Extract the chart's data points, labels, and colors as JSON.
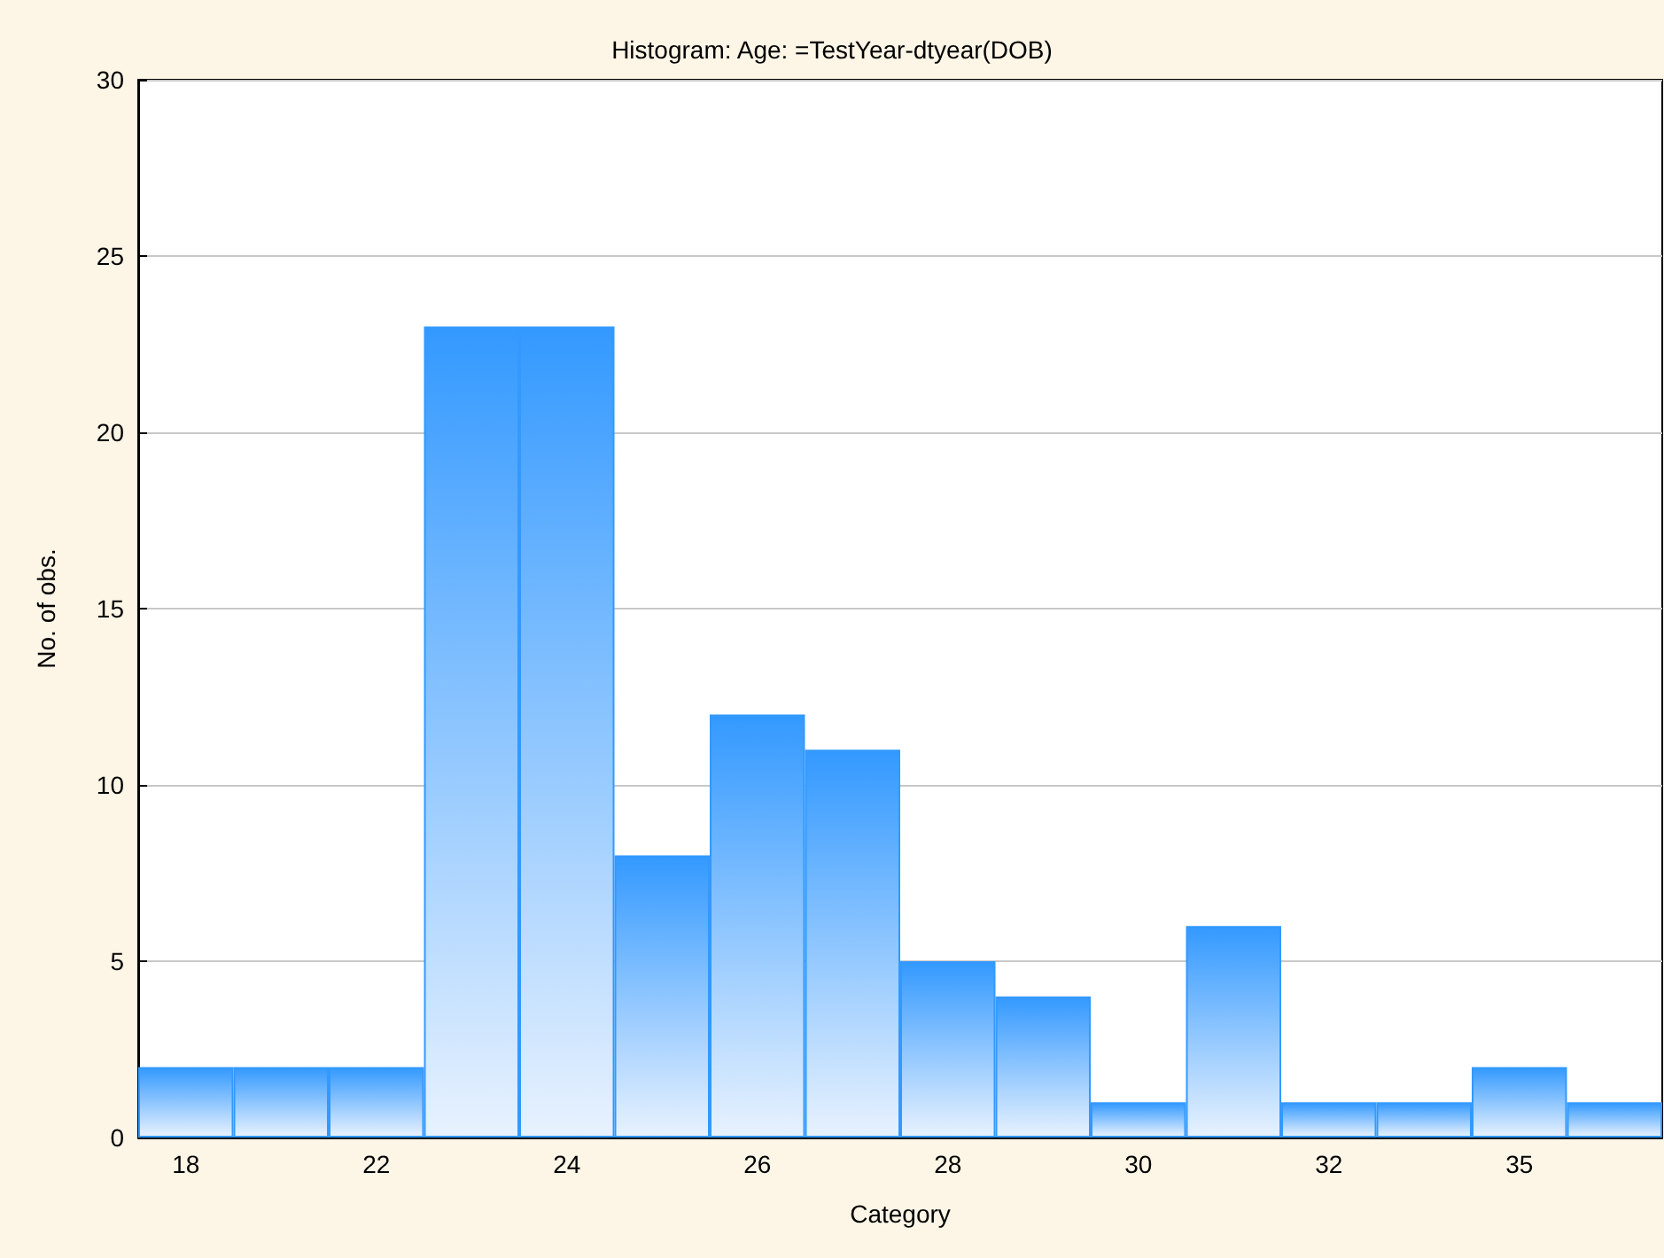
{
  "chart_data": {
    "type": "bar",
    "title": "Histogram: Age: =TestYear-dtyear(DOB)",
    "xlabel": "Category",
    "ylabel": "No. of obs.",
    "categories": [
      "18",
      null,
      "22",
      null,
      "24",
      null,
      "26",
      null,
      "28",
      null,
      "30",
      null,
      "32",
      null,
      "35",
      null
    ],
    "values": [
      2,
      2,
      2,
      23,
      23,
      8,
      12,
      11,
      5,
      4,
      1,
      6,
      1,
      1,
      2,
      1
    ],
    "color": "#3399ff",
    "ylim": [
      0,
      30
    ],
    "yticks": [
      0,
      5,
      10,
      15,
      20,
      25,
      30
    ],
    "grid": "y"
  }
}
